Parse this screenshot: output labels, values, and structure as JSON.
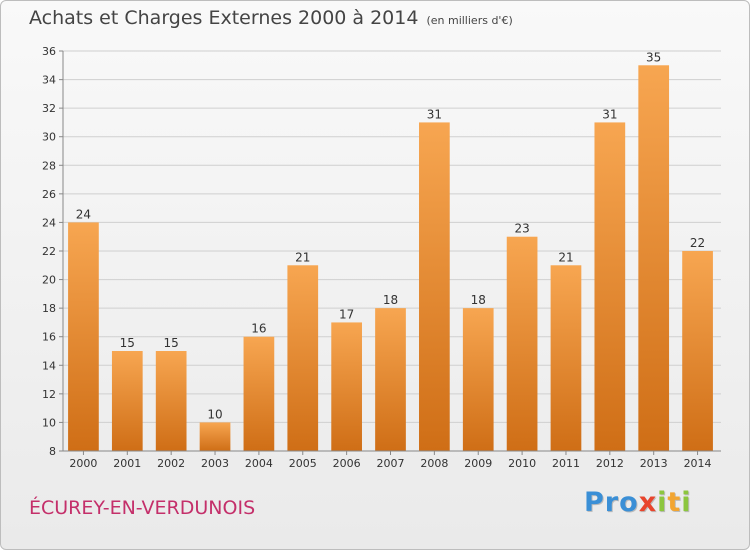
{
  "header": {
    "title": "Achats et Charges Externes 2000 à 2014",
    "unit_note": "(en milliers d'€)"
  },
  "footer": {
    "commune": "ÉCUREY-EN-VERDUNOIS",
    "brand_letters": [
      {
        "char": "P",
        "color": "#3a8fd6"
      },
      {
        "char": "r",
        "color": "#3a8fd6"
      },
      {
        "char": "o",
        "color": "#3a8fd6"
      },
      {
        "char": "x",
        "color": "#e8452c"
      },
      {
        "char": "i",
        "color": "#8cc63e"
      },
      {
        "char": "t",
        "color": "#f2a531"
      },
      {
        "char": "i",
        "color": "#8cc63e"
      }
    ]
  },
  "colors": {
    "bar_top": "#f7a651",
    "bar_bottom": "#cf6e16",
    "grid": "#cfcfcf",
    "axis_text": "#333333"
  },
  "chart_data": {
    "type": "bar",
    "categories": [
      "2000",
      "2001",
      "2002",
      "2003",
      "2004",
      "2005",
      "2006",
      "2007",
      "2008",
      "2009",
      "2010",
      "2011",
      "2012",
      "2013",
      "2014"
    ],
    "values": [
      24,
      15,
      15,
      10,
      16,
      21,
      17,
      18,
      31,
      18,
      23,
      21,
      31,
      35,
      22
    ],
    "title": "Achats et Charges Externes 2000 à 2014",
    "subtitle": "(en milliers d'€)",
    "ylim": [
      8,
      36
    ],
    "yticks": [
      8,
      10,
      12,
      14,
      16,
      18,
      20,
      22,
      24,
      26,
      28,
      30,
      32,
      34,
      36
    ],
    "grid": true,
    "data_labels": true,
    "legend": "none"
  }
}
